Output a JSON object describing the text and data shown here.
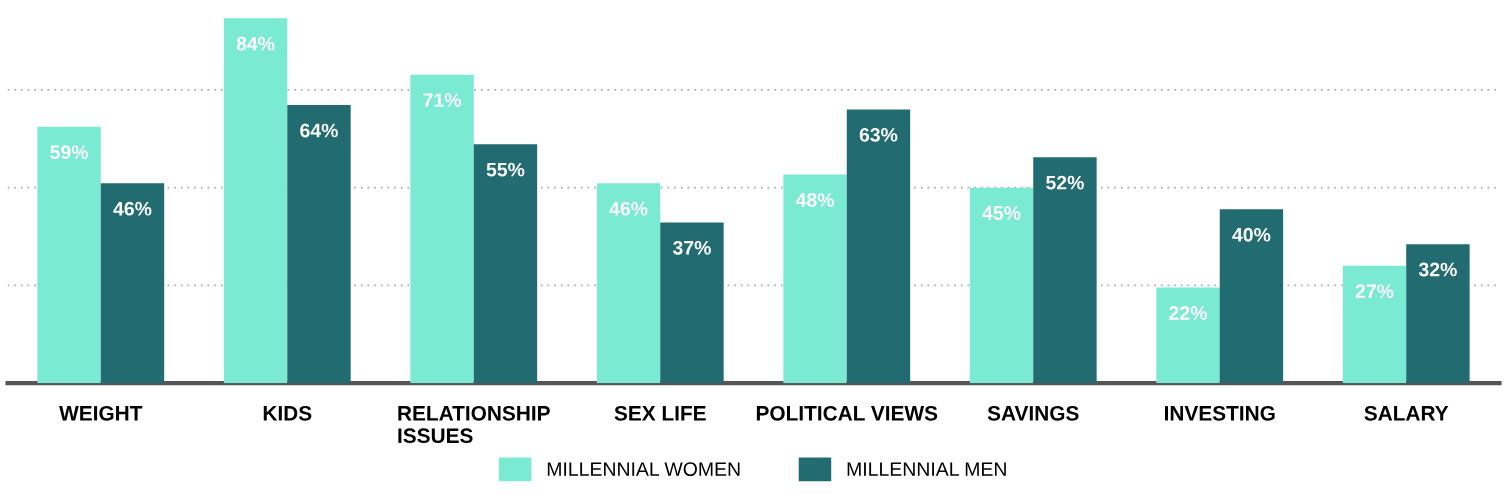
{
  "chart_data": {
    "type": "bar",
    "categories": [
      "WEIGHT",
      "KIDS",
      "RELATIONSHIP ISSUES",
      "SEX LIFE",
      "POLITICAL VIEWS",
      "SAVINGS",
      "INVESTING",
      "SALARY"
    ],
    "series": [
      {
        "name": "MILLENNIAL WOMEN",
        "color": "#7aead3",
        "values": [
          59,
          84,
          71,
          46,
          48,
          45,
          22,
          27
        ],
        "value_labels": [
          "59%",
          "84%",
          "71%",
          "46%",
          "48%",
          "45%",
          "22%",
          "27%"
        ]
      },
      {
        "name": "MILLENNIAL MEN",
        "color": "#226b70",
        "values": [
          46,
          64,
          55,
          37,
          63,
          52,
          40,
          32
        ],
        "value_labels": [
          "46%",
          "64%",
          "55%",
          "37%",
          "63%",
          "52%",
          "40%",
          "32%"
        ]
      }
    ],
    "yticks": [
      {
        "value": 22.5,
        "label": null
      },
      {
        "value": 45,
        "label": null
      },
      {
        "value": 67.5,
        "label": null
      }
    ],
    "grid": "y",
    "legend": "bottom",
    "tick_labels": "x"
  }
}
